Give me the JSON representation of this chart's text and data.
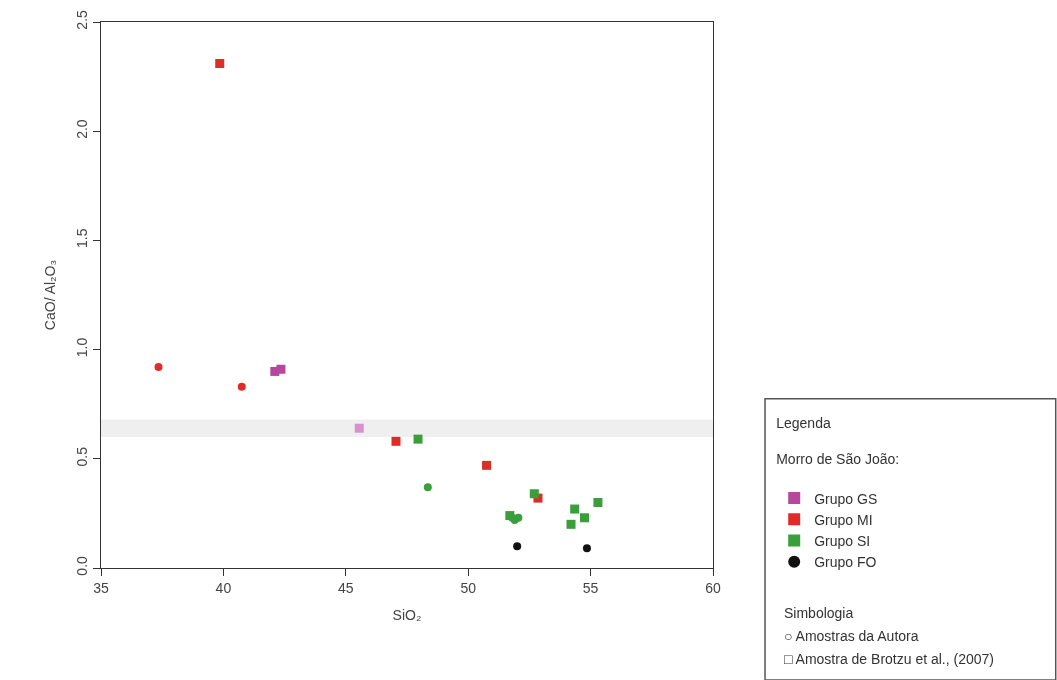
{
  "chart_data": {
    "type": "scatter",
    "xlabel": "SiO₂",
    "ylabel": "CaO/ Al₂O₃",
    "xlim": [
      35,
      60
    ],
    "xticks": [
      35,
      40,
      45,
      50,
      55,
      60
    ],
    "ylim": [
      0,
      2.5
    ],
    "yticks": [
      {
        "value": 0,
        "label": "0.0"
      },
      0.5,
      {
        "value": 1,
        "label": "1.0"
      },
      1.5,
      {
        "value": 2,
        "label": "2.0"
      },
      2.5
    ],
    "grid": false,
    "legend": "bottom right",
    "legend_title": "Legenda\n\nMorro de São João:",
    "bands": [
      {
        "axis": "y",
        "from": 0.6,
        "to": 0.68,
        "color": "#efefef"
      }
    ],
    "series": [
      {
        "name": "Grupo GS",
        "color": "#b5489e",
        "marker": "square",
        "x": [
          42.1,
          42.35
        ],
        "values": [
          0.9,
          0.91
        ]
      },
      {
        "color": "#d990cf",
        "marker": "square",
        "x": [
          45.55
        ],
        "values": [
          0.64
        ]
      },
      {
        "name": "Grupo MI",
        "color": "#e02b2b",
        "marker": "square",
        "x": [
          39.85,
          47.05,
          50.75,
          52.85
        ],
        "values": [
          2.31,
          0.58,
          0.47,
          0.32
        ]
      },
      {
        "color": "#e02b2b",
        "marker": "circle",
        "x": [
          37.35,
          40.75
        ],
        "values": [
          0.92,
          0.83
        ]
      },
      {
        "name": "Grupo SI",
        "color": "#3a9e3a",
        "marker": "square",
        "x": [
          47.95,
          52.7,
          51.7,
          54.35,
          54.75,
          54.2,
          55.3
        ],
        "values": [
          0.59,
          0.34,
          0.24,
          0.27,
          0.23,
          0.2,
          0.3
        ]
      },
      {
        "color": "#3a9e3a",
        "marker": "circle",
        "x": [
          48.35,
          51.8,
          51.9,
          52.05
        ],
        "values": [
          0.37,
          0.23,
          0.22,
          0.23
        ]
      },
      {
        "name": "Grupo FO",
        "color": "#111111",
        "marker": "circle",
        "x": [
          52.0,
          54.85
        ],
        "values": [
          0.1,
          0.09
        ]
      }
    ],
    "annotations": [
      "Simbologia",
      "○ Amostras da Autora",
      "□ Amostra de Brotzu et al., (2007)"
    ]
  }
}
